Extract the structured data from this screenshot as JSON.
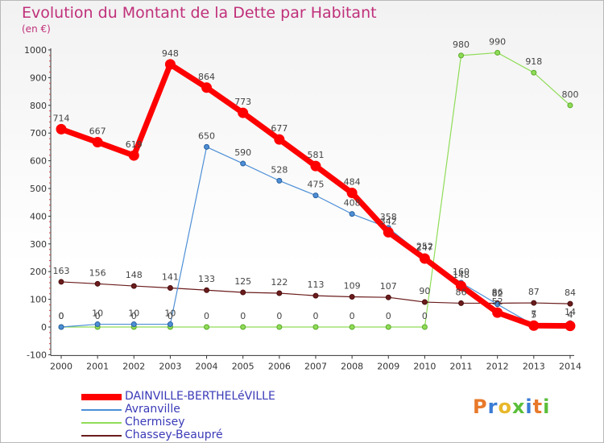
{
  "header": {
    "title": "Evolution du Montant de la Dette par Habitant",
    "unit": "(en €)"
  },
  "logo": {
    "text": "Proxiti"
  },
  "chart_data": {
    "type": "line",
    "title": "Evolution du Montant de la Dette par Habitant",
    "ylabel": "(en €)",
    "xlabel": "",
    "ylim": [
      -100,
      1000
    ],
    "grid": false,
    "legend_position": "bottom-left",
    "y_ticks": [
      -100,
      0,
      100,
      200,
      300,
      400,
      500,
      600,
      700,
      800,
      900,
      1000
    ],
    "categories": [
      "2000",
      "2001",
      "2002",
      "2003",
      "2004",
      "2005",
      "2006",
      "2007",
      "2008",
      "2009",
      "2010",
      "2011",
      "2012",
      "2013",
      "2014"
    ],
    "series": [
      {
        "name": "DAINVILLE-BERTHELéVILLE",
        "color": "#ff0000",
        "values": [
          714,
          667,
          619,
          948,
          864,
          773,
          677,
          581,
          484,
          342,
          247,
          148,
          52,
          5,
          4
        ]
      },
      {
        "name": "Avranville",
        "color": "#4d8fd6",
        "values": [
          0,
          10,
          10,
          10,
          650,
          590,
          528,
          475,
          408,
          358,
          252,
          160,
          82,
          7,
          14
        ]
      },
      {
        "name": "Chermisey",
        "color": "#8fdc57",
        "values": [
          0,
          0,
          0,
          0,
          0,
          0,
          0,
          0,
          0,
          0,
          0,
          980,
          990,
          918,
          800
        ]
      },
      {
        "name": "Chassey-Beaupré",
        "color": "#6b1c1c",
        "values": [
          163,
          156,
          148,
          141,
          133,
          125,
          122,
          113,
          109,
          107,
          90,
          86,
          86,
          87,
          84
        ]
      }
    ],
    "data_labels": [
      [
        "714",
        "667",
        "619",
        "948",
        "864",
        "773",
        "677",
        "581",
        "484",
        "342",
        "247",
        "148",
        "52",
        "5",
        "4"
      ],
      [
        "0",
        "10",
        "10",
        "10",
        "650",
        "590",
        "528",
        "475",
        "408",
        "358",
        "252",
        "160",
        "82",
        "7",
        "14"
      ],
      [
        "0",
        "0",
        "0",
        "0",
        "0",
        "0",
        "0",
        "0",
        "0",
        "0",
        "0",
        "980",
        "990",
        "918",
        "800"
      ],
      [
        "163",
        "156",
        "148",
        "141",
        "133",
        "125",
        "122",
        "113",
        "109",
        "107",
        "90",
        "86",
        "86",
        "87",
        "84"
      ]
    ]
  }
}
